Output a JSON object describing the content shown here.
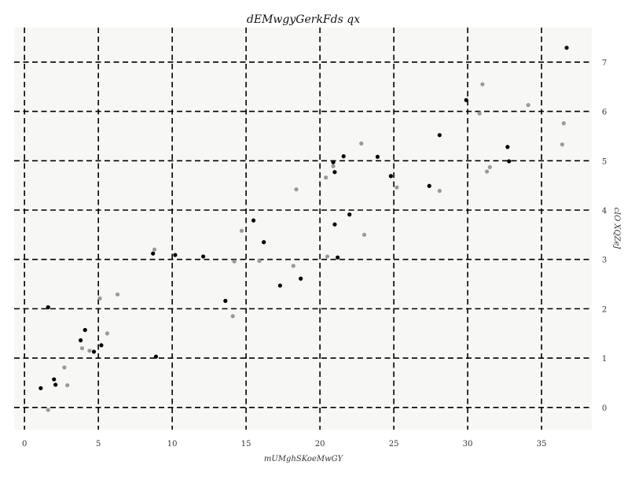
{
  "chart_data": {
    "type": "scatter",
    "title": "dEMwgyGerkFds qx",
    "xlabel": "mUMghSKoeMwGY",
    "ylabel": "cIO XQZeJ",
    "xlim": [
      -0.7,
      38.4
    ],
    "ylim": [
      -0.45,
      7.7
    ],
    "xticks": [
      0,
      5,
      10,
      15,
      20,
      25,
      30,
      35
    ],
    "yticks": [
      0,
      1,
      2,
      3,
      4,
      5,
      6,
      7
    ],
    "xtick_labels": [
      "0",
      "5",
      "10",
      "15",
      "20",
      "25",
      "30",
      "35"
    ],
    "ytick_labels": [
      "0",
      "1",
      "2",
      "3",
      "4",
      "5",
      "6",
      "7"
    ],
    "grid": true,
    "y_axis_position": "right",
    "background_color": "#f7f7f5",
    "series": [
      {
        "color": "#000000",
        "points": [
          [
            1.1,
            0.39
          ],
          [
            1.6,
            2.03
          ],
          [
            2.0,
            0.57
          ],
          [
            2.1,
            0.46
          ],
          [
            3.8,
            1.36
          ],
          [
            4.1,
            1.57
          ],
          [
            4.7,
            1.13
          ],
          [
            5.2,
            1.26
          ],
          [
            8.7,
            3.12
          ],
          [
            8.9,
            1.03
          ],
          [
            10.2,
            3.09
          ],
          [
            12.1,
            3.06
          ],
          [
            13.6,
            2.16
          ],
          [
            15.5,
            3.79
          ],
          [
            16.2,
            3.35
          ],
          [
            17.3,
            2.47
          ],
          [
            18.7,
            2.61
          ],
          [
            20.9,
            4.97
          ],
          [
            21.0,
            4.77
          ],
          [
            21.0,
            3.71
          ],
          [
            21.2,
            3.04
          ],
          [
            21.6,
            5.09
          ],
          [
            22.0,
            3.91
          ],
          [
            23.9,
            5.08
          ],
          [
            24.8,
            4.69
          ],
          [
            27.4,
            4.49
          ],
          [
            28.1,
            5.52
          ],
          [
            29.9,
            6.23
          ],
          [
            32.7,
            5.28
          ],
          [
            32.8,
            4.99
          ],
          [
            36.7,
            7.29
          ]
        ]
      },
      {
        "color": "#999999",
        "points": [
          [
            1.6,
            -0.05
          ],
          [
            2.7,
            0.81
          ],
          [
            2.9,
            0.45
          ],
          [
            3.9,
            1.2
          ],
          [
            4.4,
            1.15
          ],
          [
            5.1,
            2.21
          ],
          [
            5.6,
            1.5
          ],
          [
            6.3,
            2.29
          ],
          [
            8.8,
            3.2
          ],
          [
            14.1,
            1.85
          ],
          [
            14.2,
            2.96
          ],
          [
            14.7,
            3.58
          ],
          [
            15.9,
            2.97
          ],
          [
            18.2,
            2.87
          ],
          [
            18.4,
            4.42
          ],
          [
            20.4,
            4.66
          ],
          [
            20.5,
            3.06
          ],
          [
            20.9,
            4.89
          ],
          [
            22.8,
            5.35
          ],
          [
            23.0,
            3.5
          ],
          [
            25.2,
            4.46
          ],
          [
            28.1,
            4.39
          ],
          [
            30.8,
            5.96
          ],
          [
            31.0,
            6.55
          ],
          [
            31.3,
            4.78
          ],
          [
            31.5,
            4.87
          ],
          [
            34.1,
            6.13
          ],
          [
            36.4,
            5.33
          ],
          [
            36.5,
            5.76
          ]
        ]
      }
    ]
  }
}
